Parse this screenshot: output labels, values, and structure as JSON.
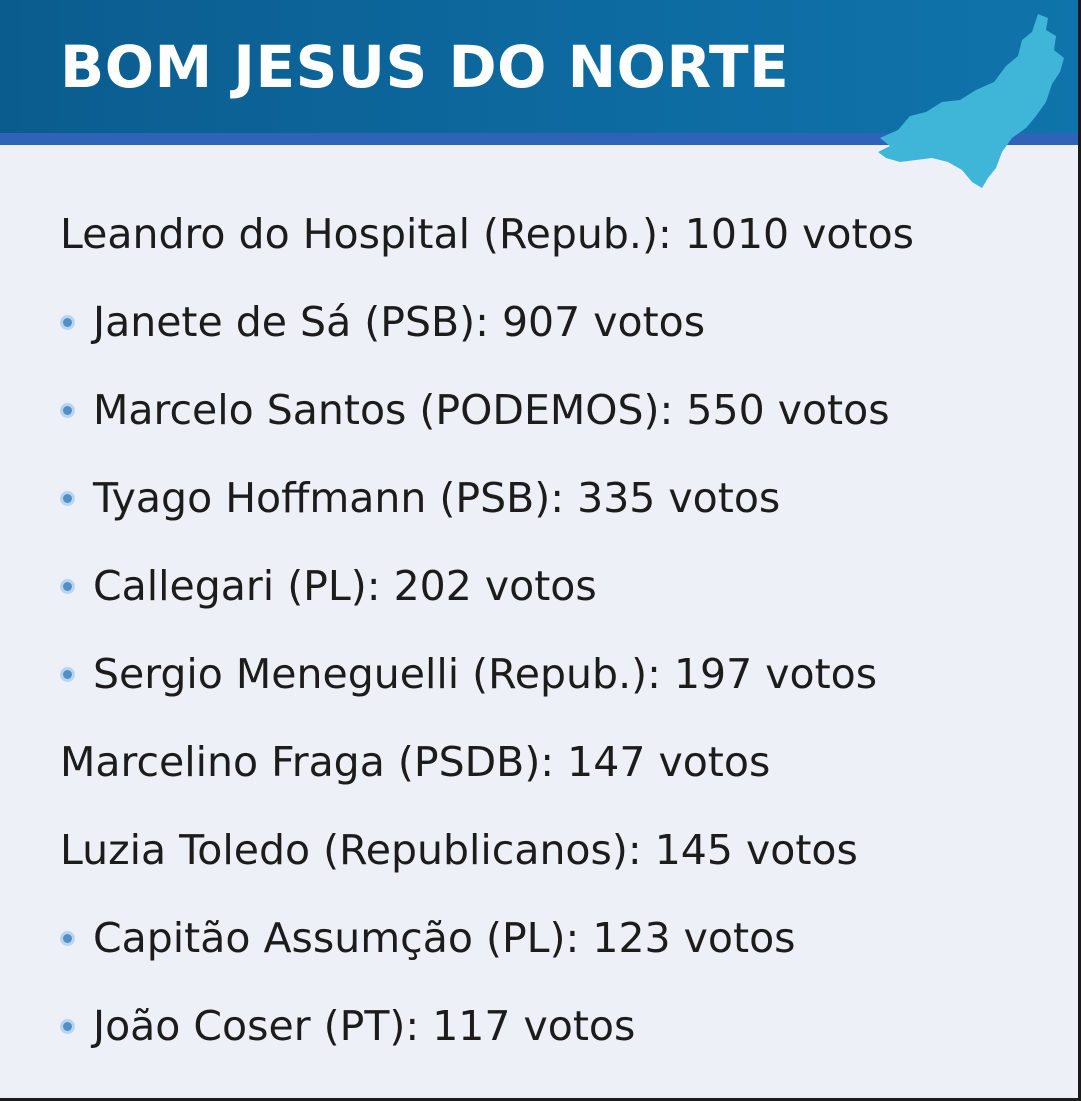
{
  "header": {
    "title": "BOM JESUS DO NORTE",
    "map_icon": "espirito-santo-state-map",
    "colors": {
      "band": "#0d6aa0",
      "line": "#2f63b8",
      "map": "#3fb6d8"
    }
  },
  "results": [
    {
      "text": "Leandro do Hospital (Repub.): 1010 votos",
      "bullet": false
    },
    {
      "text": "Janete de Sá (PSB): 907 votos",
      "bullet": true
    },
    {
      "text": "Marcelo Santos (PODEMOS): 550 votos",
      "bullet": true
    },
    {
      "text": "Tyago Hoffmann (PSB): 335 votos",
      "bullet": true
    },
    {
      "text": "Callegari (PL): 202 votos",
      "bullet": true
    },
    {
      "text": "Sergio Meneguelli (Repub.): 197 votos",
      "bullet": true
    },
    {
      "text": "Marcelino Fraga (PSDB): 147 votos",
      "bullet": false
    },
    {
      "text": "Luzia Toledo (Republicanos): 145 votos",
      "bullet": false
    },
    {
      "text": "Capitão Assumção (PL): 123 votos",
      "bullet": true
    },
    {
      "text": "João Coser (PT): 117 votos",
      "bullet": true
    }
  ]
}
